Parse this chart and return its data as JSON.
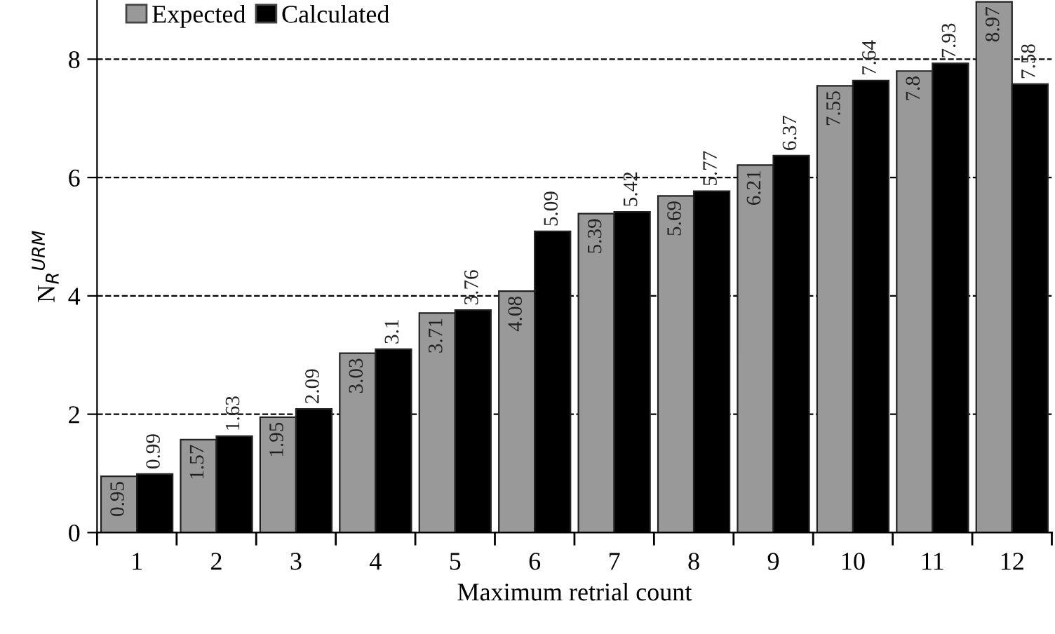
{
  "chart_data": {
    "type": "bar",
    "xlabel": "Maximum retrial count",
    "ylabel": "N$_{R}$$^{URM}$",
    "categories": [
      "1",
      "2",
      "3",
      "4",
      "5",
      "6",
      "7",
      "8",
      "9",
      "10",
      "11",
      "12"
    ],
    "series": [
      {
        "name": "Expected",
        "color": "#999999",
        "values": [
          0.95,
          1.57,
          1.95,
          3.03,
          3.71,
          4.08,
          5.39,
          5.69,
          6.21,
          7.55,
          7.8,
          8.97
        ]
      },
      {
        "name": "Calculated",
        "color": "#000000",
        "values": [
          0.99,
          1.63,
          2.09,
          3.1,
          3.76,
          5.09,
          5.42,
          5.77,
          6.37,
          7.64,
          7.93,
          7.58
        ]
      }
    ],
    "ylim": [
      0,
      9
    ],
    "yticks": [
      0,
      2,
      4,
      6,
      8
    ],
    "grid": "y",
    "legend": "top left",
    "data_labels": true
  }
}
